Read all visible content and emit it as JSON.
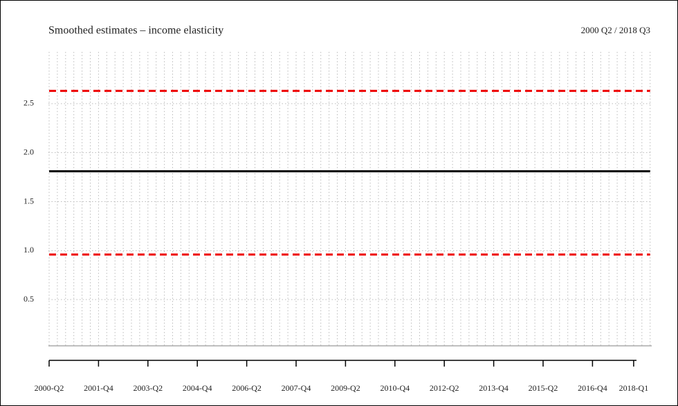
{
  "chart_data": {
    "type": "line",
    "title": "Smoothed estimates – income elasticity",
    "annotation": "2000 Q2 / 2018 Q3",
    "categories": [
      "2000-Q2",
      null,
      null,
      null,
      null,
      null,
      "2001-Q4",
      null,
      null,
      null,
      null,
      null,
      "2003-Q2",
      null,
      null,
      null,
      null,
      null,
      "2004-Q4",
      null,
      null,
      null,
      null,
      null,
      "2006-Q2",
      null,
      null,
      null,
      null,
      null,
      "2007-Q4",
      null,
      null,
      null,
      null,
      null,
      "2009-Q2",
      null,
      null,
      null,
      null,
      null,
      "2010-Q4",
      null,
      null,
      null,
      null,
      null,
      "2012-Q2",
      null,
      null,
      null,
      null,
      null,
      "2013-Q4",
      null,
      null,
      null,
      null,
      null,
      "2015-Q2",
      null,
      null,
      null,
      null,
      null,
      "2016-Q4",
      null,
      null,
      null,
      null,
      "2018-Q1",
      null,
      null
    ],
    "series": [
      {
        "color": "#ee0000",
        "dashed": true,
        "values": [
          2.63,
          2.63,
          2.63,
          2.63,
          2.63,
          2.63,
          2.63,
          2.63,
          2.63,
          2.63,
          2.63,
          2.63,
          2.63,
          2.63,
          2.63,
          2.63,
          2.63,
          2.63,
          2.63,
          2.63,
          2.63,
          2.63,
          2.63,
          2.63,
          2.63,
          2.63,
          2.63,
          2.63,
          2.63,
          2.63,
          2.63,
          2.63,
          2.63,
          2.63,
          2.63,
          2.63,
          2.63,
          2.63,
          2.63,
          2.63,
          2.63,
          2.63,
          2.63,
          2.63,
          2.63,
          2.63,
          2.63,
          2.63,
          2.63,
          2.63,
          2.63,
          2.63,
          2.63,
          2.63,
          2.63,
          2.63,
          2.63,
          2.63,
          2.63,
          2.63,
          2.63,
          2.63,
          2.63,
          2.63,
          2.63,
          2.63,
          2.63,
          2.63,
          2.63,
          2.63,
          2.63,
          2.63,
          2.63,
          2.63
        ]
      },
      {
        "color": "#000000",
        "dashed": false,
        "values": [
          1.81,
          1.81,
          1.81,
          1.81,
          1.81,
          1.81,
          1.81,
          1.81,
          1.81,
          1.81,
          1.81,
          1.81,
          1.81,
          1.81,
          1.81,
          1.81,
          1.81,
          1.81,
          1.81,
          1.81,
          1.81,
          1.81,
          1.81,
          1.81,
          1.81,
          1.81,
          1.81,
          1.81,
          1.81,
          1.81,
          1.81,
          1.81,
          1.81,
          1.81,
          1.81,
          1.81,
          1.81,
          1.81,
          1.81,
          1.81,
          1.81,
          1.81,
          1.81,
          1.81,
          1.81,
          1.81,
          1.81,
          1.81,
          1.81,
          1.81,
          1.81,
          1.81,
          1.81,
          1.81,
          1.81,
          1.81,
          1.81,
          1.81,
          1.81,
          1.81,
          1.81,
          1.81,
          1.81,
          1.81,
          1.81,
          1.81,
          1.81,
          1.81,
          1.81,
          1.81,
          1.81,
          1.81,
          1.81,
          1.81
        ]
      },
      {
        "color": "#ee0000",
        "dashed": true,
        "values": [
          0.96,
          0.96,
          0.96,
          0.96,
          0.96,
          0.96,
          0.96,
          0.96,
          0.96,
          0.96,
          0.96,
          0.96,
          0.96,
          0.96,
          0.96,
          0.96,
          0.96,
          0.96,
          0.96,
          0.96,
          0.96,
          0.96,
          0.96,
          0.96,
          0.96,
          0.96,
          0.96,
          0.96,
          0.96,
          0.96,
          0.96,
          0.96,
          0.96,
          0.96,
          0.96,
          0.96,
          0.96,
          0.96,
          0.96,
          0.96,
          0.96,
          0.96,
          0.96,
          0.96,
          0.96,
          0.96,
          0.96,
          0.96,
          0.96,
          0.96,
          0.96,
          0.96,
          0.96,
          0.96,
          0.96,
          0.96,
          0.96,
          0.96,
          0.96,
          0.96,
          0.96,
          0.96,
          0.96,
          0.96,
          0.96,
          0.96,
          0.96,
          0.96,
          0.96,
          0.96,
          0.96,
          0.96,
          0.96,
          0.96
        ]
      }
    ],
    "ylim": [
      0,
      3
    ],
    "yticks": [
      0.5,
      {
        "value": 1,
        "label": "1.0"
      },
      1.5,
      {
        "value": 2,
        "label": "2.0"
      },
      2.5
    ],
    "grid": true
  }
}
